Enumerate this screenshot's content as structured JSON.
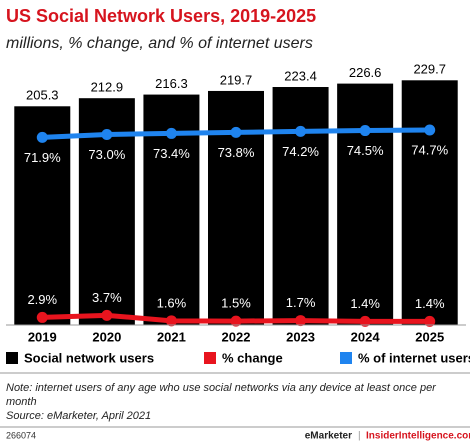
{
  "chart_data": {
    "type": "bar",
    "title": "US Social Network Users, 2019-2025",
    "subtitle": "millions, % change, and % of internet users",
    "categories": [
      "2019",
      "2020",
      "2021",
      "2022",
      "2023",
      "2024",
      "2025"
    ],
    "series": [
      {
        "name": "Social network users",
        "color": "#000000",
        "values": [
          205.3,
          212.9,
          216.3,
          219.7,
          223.4,
          226.6,
          229.7
        ]
      },
      {
        "name": "% change",
        "color": "#e8141e",
        "type": "line",
        "axis": "y2",
        "values": [
          2.9,
          3.7,
          1.6,
          1.5,
          1.7,
          1.4,
          1.4
        ],
        "value_labels": [
          "2.9%",
          "3.7%",
          "1.6%",
          "1.5%",
          "1.7%",
          "1.4%",
          "1.4%"
        ]
      },
      {
        "name": "% of internet users",
        "color": "#1f84ef",
        "type": "line",
        "axis": "y2",
        "values": [
          71.9,
          73.0,
          73.4,
          73.8,
          74.2,
          74.5,
          74.7
        ],
        "value_labels": [
          "71.9%",
          "73.0%",
          "73.4%",
          "73.8%",
          "74.2%",
          "74.5%",
          "74.7%"
        ]
      }
    ],
    "ylim": [
      0,
      245
    ],
    "y2lim": [
      0,
      100
    ],
    "note": "Note: internet users of any age who use social networks via any device at least once per month",
    "source": "Source: eMarketer, April 2021",
    "id": "266074",
    "credits": [
      "eMarketer",
      "InsiderIntelligence.com"
    ]
  }
}
